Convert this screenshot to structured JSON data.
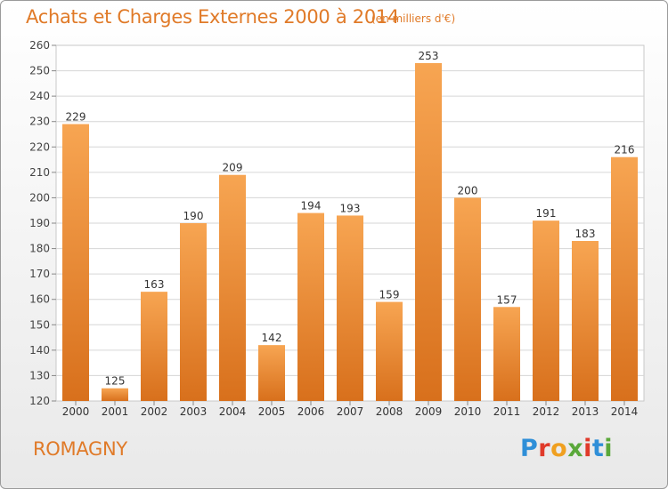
{
  "header": {
    "title": "Achats et Charges Externes 2000 à 2014",
    "unit": "(en milliers d'€)"
  },
  "footer": {
    "commune": "ROMAGNY",
    "logo": "Proxiti"
  },
  "colors": {
    "bar_light": "#f7a552",
    "bar_dark": "#d8701c",
    "accent": "#e07a28"
  },
  "chart_data": {
    "type": "bar",
    "title": "Achats et Charges Externes 2000 à 2014",
    "subtitle": "(en milliers d'€)",
    "categories": [
      "2000",
      "2001",
      "2002",
      "2003",
      "2004",
      "2005",
      "2006",
      "2007",
      "2008",
      "2009",
      "2010",
      "2011",
      "2012",
      "2013",
      "2014"
    ],
    "values": [
      229,
      125,
      163,
      190,
      209,
      142,
      194,
      193,
      159,
      253,
      200,
      157,
      191,
      183,
      216
    ],
    "ylim": [
      120,
      260
    ],
    "yticks": [
      120,
      130,
      140,
      150,
      160,
      170,
      180,
      190,
      200,
      210,
      220,
      230,
      240,
      250,
      260
    ],
    "grid": true,
    "data_labels": true
  }
}
